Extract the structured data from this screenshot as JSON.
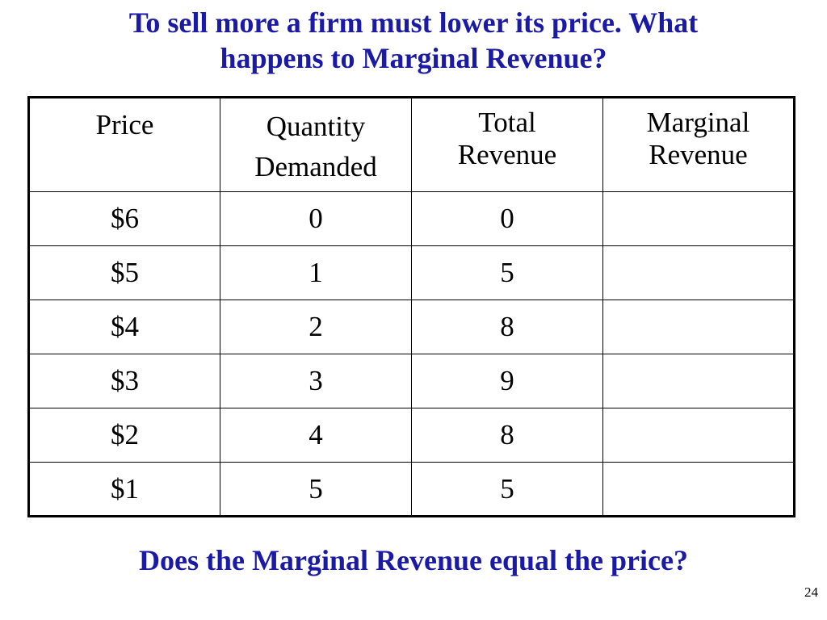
{
  "slide": {
    "title_line1": "To sell more a firm must lower its price. What",
    "title_line2": "happens to Marginal Revenue?",
    "question": "Does the Marginal Revenue equal the price?",
    "page_number": "24"
  },
  "table": {
    "headers": {
      "price": "Price",
      "quantity_line1": "Quantity",
      "quantity_line2": "Demanded",
      "total_line1": "Total",
      "total_line2": "Revenue",
      "marginal_line1": "Marginal",
      "marginal_line2": "Revenue"
    },
    "rows": [
      {
        "price": "$6",
        "quantity": "0",
        "total_revenue": "0",
        "marginal_revenue": ""
      },
      {
        "price": "$5",
        "quantity": "1",
        "total_revenue": "5",
        "marginal_revenue": ""
      },
      {
        "price": "$4",
        "quantity": "2",
        "total_revenue": "8",
        "marginal_revenue": ""
      },
      {
        "price": "$3",
        "quantity": "3",
        "total_revenue": "9",
        "marginal_revenue": ""
      },
      {
        "price": "$2",
        "quantity": "4",
        "total_revenue": "8",
        "marginal_revenue": ""
      },
      {
        "price": "$1",
        "quantity": "5",
        "total_revenue": "5",
        "marginal_revenue": ""
      }
    ]
  },
  "colors": {
    "heading_text": "#1a1aa6",
    "body_text": "#000000",
    "background": "#ffffff"
  }
}
